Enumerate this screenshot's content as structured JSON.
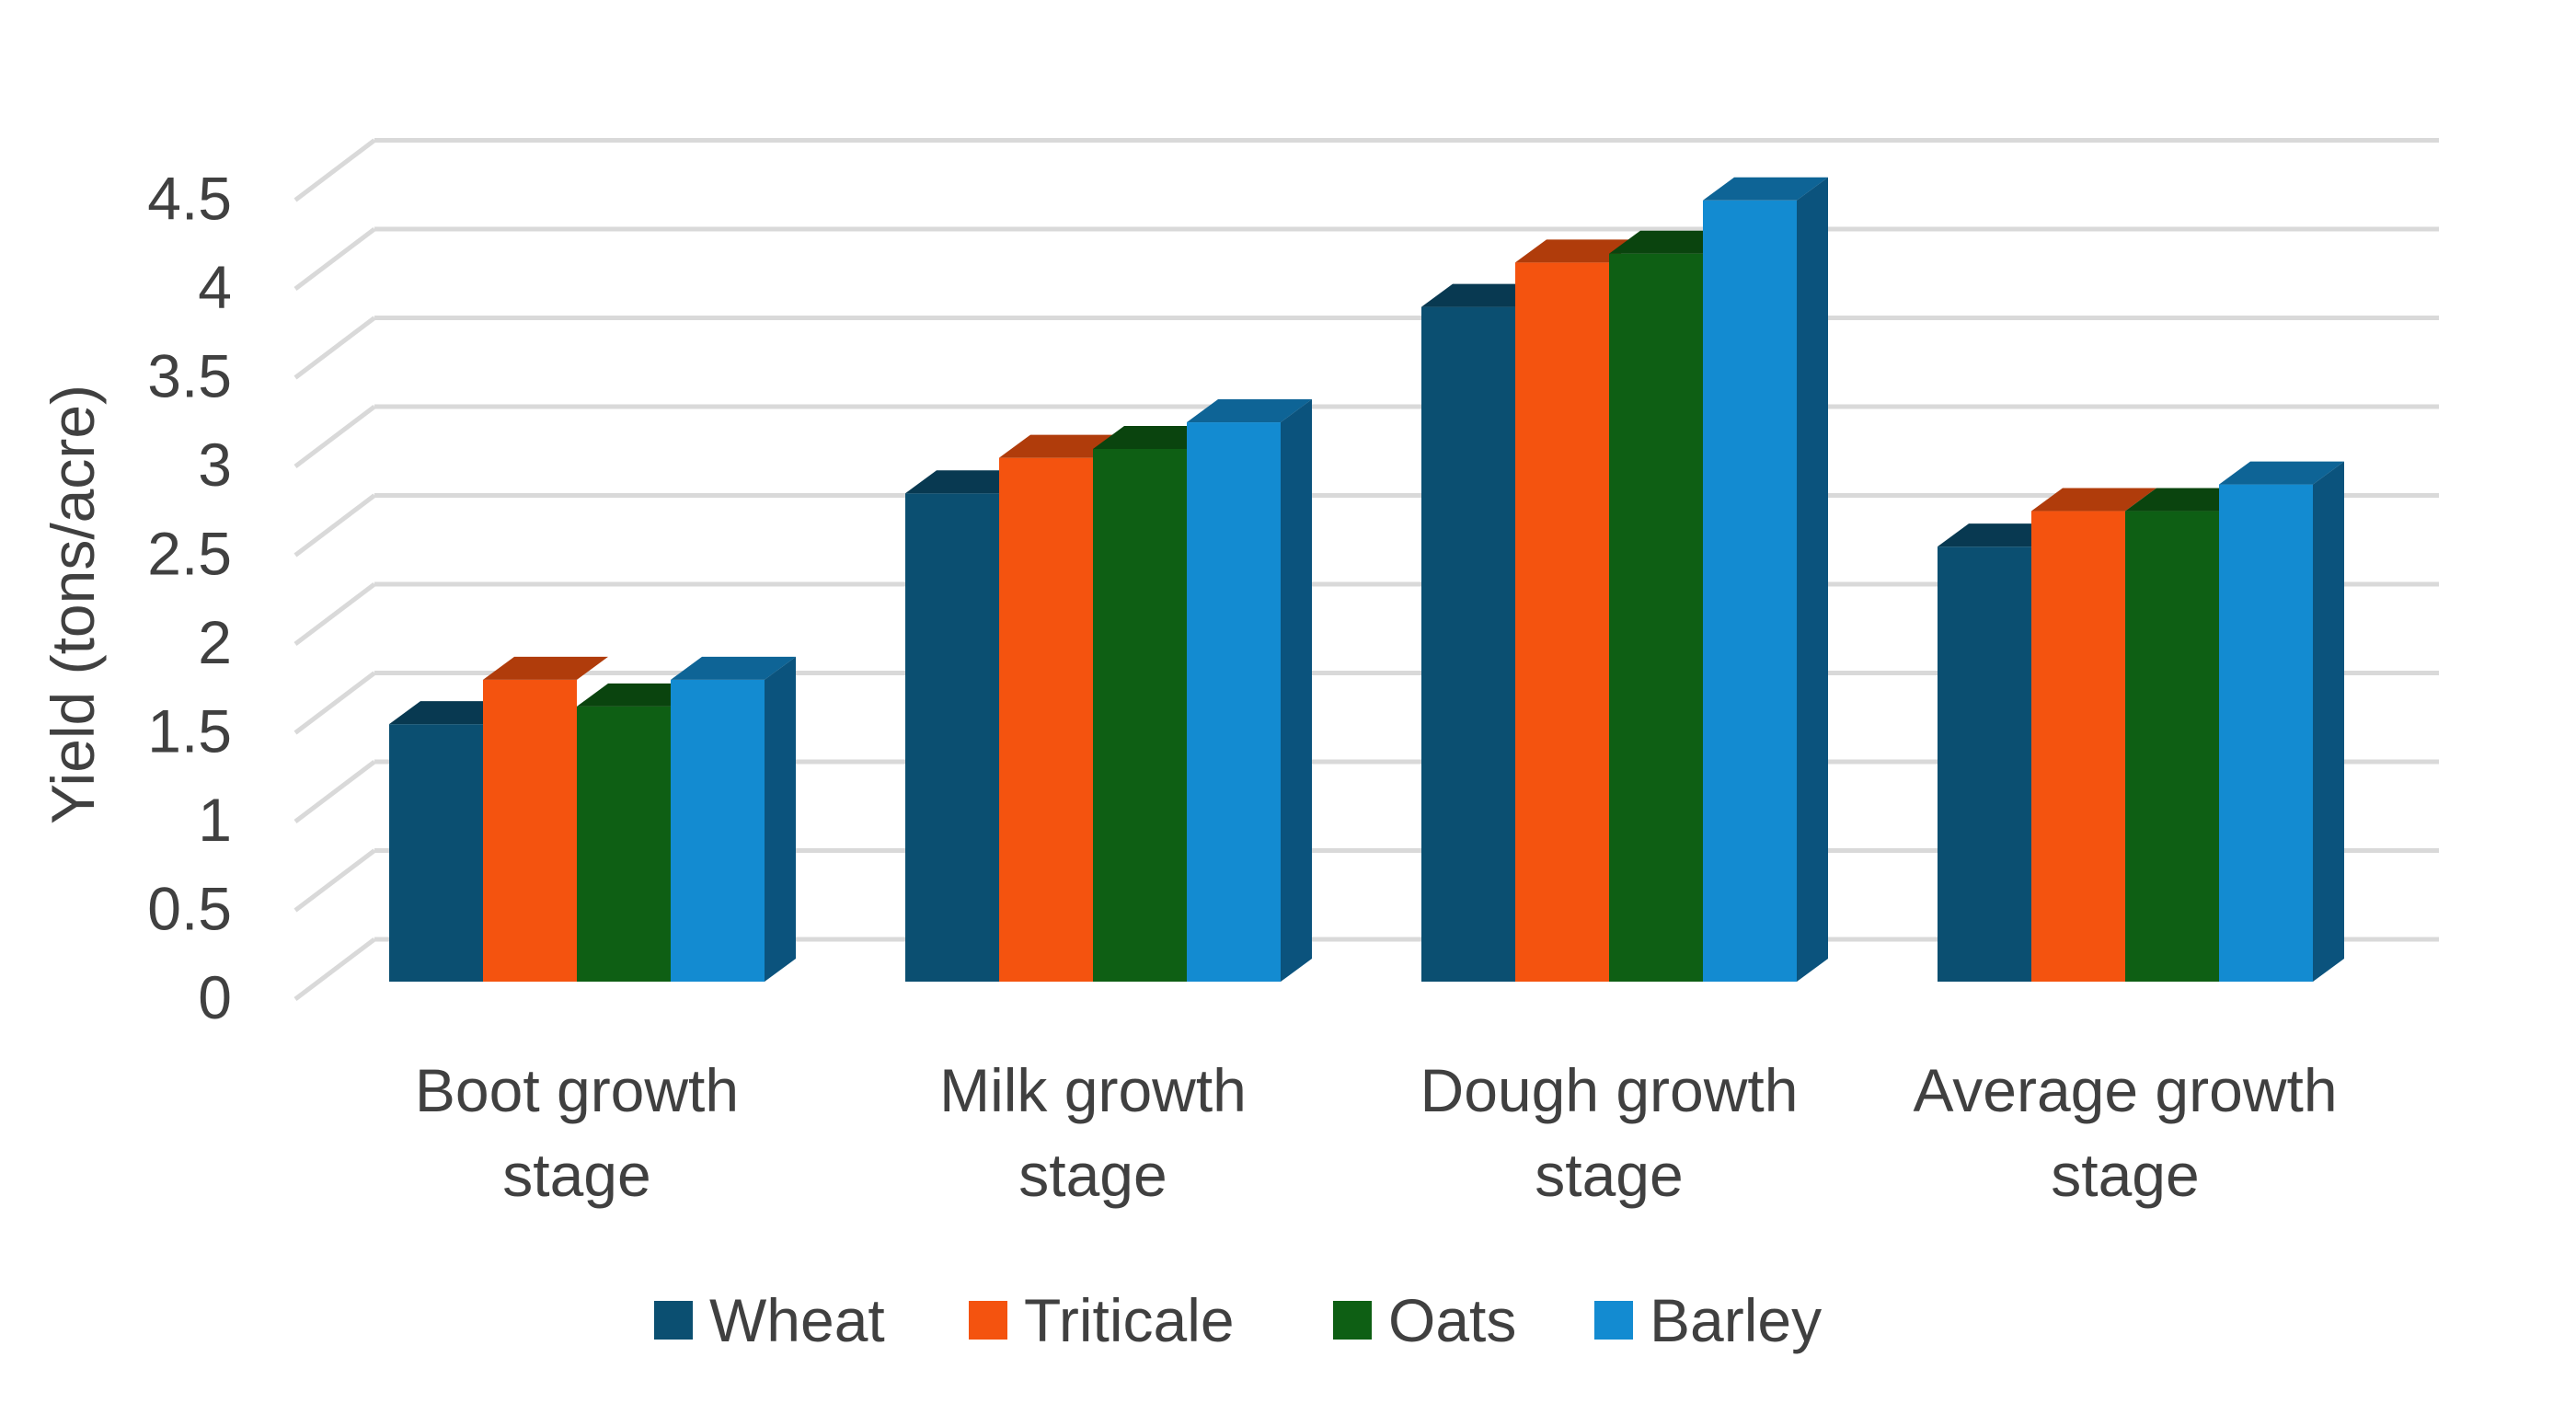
{
  "chart_data": {
    "type": "bar",
    "style": "3d-clustered-column",
    "title": "",
    "xlabel": "",
    "ylabel": "Yield (tons/acre)",
    "ylim": [
      0,
      4.5
    ],
    "yticks": [
      "0",
      "0.5",
      "1",
      "1.5",
      "2",
      "2.5",
      "3",
      "3.5",
      "4",
      "4.5"
    ],
    "grid": true,
    "legend_position": "bottom",
    "categories": [
      [
        "Boot growth",
        "stage"
      ],
      [
        "Milk growth",
        "stage"
      ],
      [
        "Dough growth",
        "stage"
      ],
      [
        "Average growth",
        "stage"
      ]
    ],
    "series": [
      {
        "name": "Wheat",
        "color": "#0B4F71",
        "values": [
          1.45,
          2.75,
          3.8,
          2.45
        ]
      },
      {
        "name": "Triticale",
        "color": "#F4530F",
        "values": [
          1.7,
          2.95,
          4.05,
          2.65
        ]
      },
      {
        "name": "Oats",
        "color": "#0E5F14",
        "values": [
          1.55,
          3.0,
          4.1,
          2.65
        ]
      },
      {
        "name": "Barley",
        "color": "#138BD1",
        "values": [
          1.7,
          3.15,
          4.4,
          2.8
        ]
      }
    ]
  }
}
